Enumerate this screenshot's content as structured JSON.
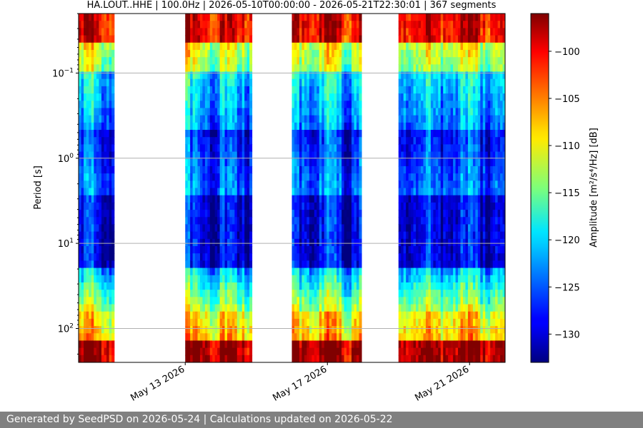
{
  "chart_data": {
    "type": "heatmap",
    "title": "HA.LOUT..HHE | 100.0Hz | 2026-05-10T00:00:00 - 2026-05-21T22:30:01 | 367 segments",
    "ylabel": "Period [s]",
    "y_scale": "log",
    "y_inverted": true,
    "ylim": [
      250,
      0.02
    ],
    "y_ticks": [
      {
        "value": 0.1,
        "base": "10",
        "exp": "−1"
      },
      {
        "value": 1,
        "base": "10",
        "exp": "0"
      },
      {
        "value": 10,
        "base": "10",
        "exp": "1"
      },
      {
        "value": 100,
        "base": "10",
        "exp": "2"
      }
    ],
    "xlim": [
      "2026-05-10T00:00:00",
      "2026-05-22T00:00:00"
    ],
    "x_ticks": [
      {
        "date": "2026-05-13",
        "label": "May 13 2026"
      },
      {
        "date": "2026-05-17",
        "label": "May 17 2026"
      },
      {
        "date": "2026-05-21",
        "label": "May 21 2026"
      }
    ],
    "data_segments": [
      {
        "start": "2026-05-10T00:00:00",
        "end": "2026-05-11T00:00:00"
      },
      {
        "start": "2026-05-13T00:00:00",
        "end": "2026-05-14T21:00:00"
      },
      {
        "start": "2026-05-16T00:00:00",
        "end": "2026-05-17T23:00:00"
      },
      {
        "start": "2026-05-19T00:00:00",
        "end": "2026-05-22T00:00:00"
      }
    ],
    "colorbar": {
      "label": "Amplitude [m²/s⁴/Hz] [dB]",
      "colormap": "jet",
      "range": [
        -133,
        -96
      ],
      "ticks": [
        -100,
        -105,
        -110,
        -115,
        -120,
        -125,
        -130
      ]
    },
    "grid": "horizontal"
  },
  "footer": {
    "text": "Generated by SeedPSD on 2026-05-24 | Calculations updated on 2026-05-22"
  }
}
